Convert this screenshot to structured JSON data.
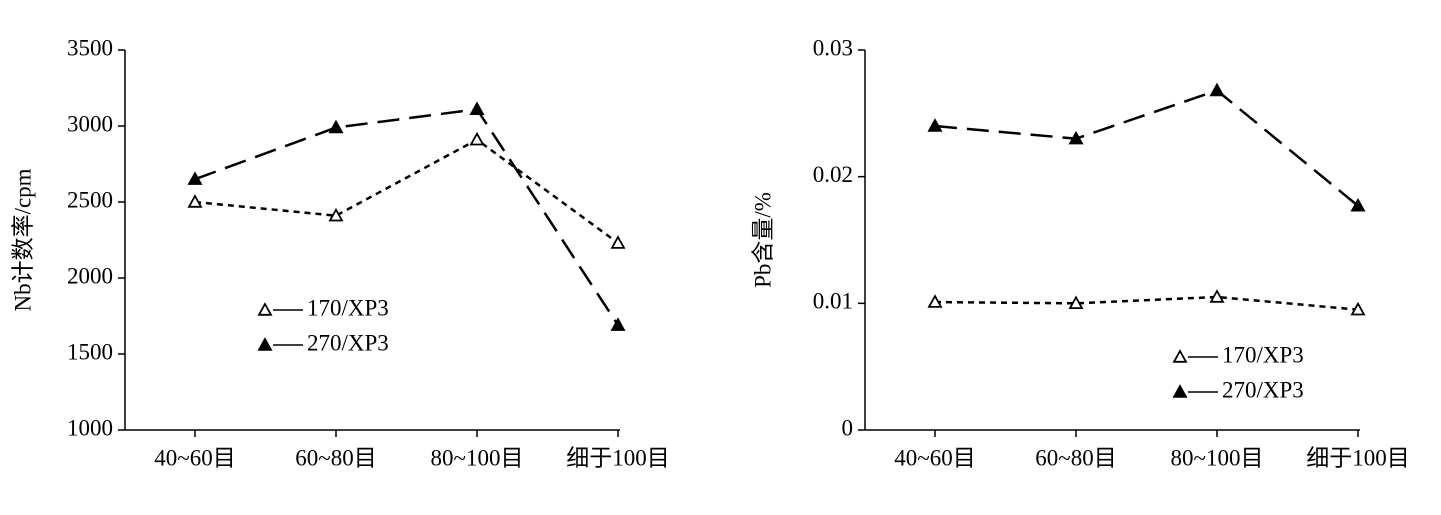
{
  "chart_data": [
    {
      "type": "line",
      "y_label": "Nb计数率/cpm",
      "categories": [
        "40~60目",
        "60~80目",
        "80~100目",
        "细于100目"
      ],
      "series": [
        {
          "name": "170/XP3",
          "color": "#000000",
          "marker": "open-triangle",
          "line_style": "short-dash",
          "values": [
            2500,
            2410,
            2910,
            2230
          ]
        },
        {
          "name": "270/XP3",
          "color": "#000000",
          "marker": "filled-triangle",
          "line_style": "long-dash",
          "values": [
            2650,
            2990,
            3110,
            1690
          ]
        }
      ],
      "ylim": [
        1000,
        3500
      ],
      "yticks": [
        1000,
        1500,
        2000,
        2500,
        3000,
        3500
      ],
      "legend": "center-left"
    },
    {
      "type": "line",
      "y_label": "Pb含量/%",
      "categories": [
        "40~60目",
        "60~80目",
        "80~100目",
        "细于100目"
      ],
      "series": [
        {
          "name": "170/XP3",
          "color": "#000000",
          "marker": "open-triangle",
          "line_style": "short-dash",
          "values": [
            0.0101,
            0.01,
            0.0105,
            0.0095
          ]
        },
        {
          "name": "270/XP3",
          "color": "#000000",
          "marker": "filled-triangle",
          "line_style": "long-dash",
          "values": [
            0.024,
            0.023,
            0.0268,
            0.0177
          ]
        }
      ],
      "ylim": [
        0,
        0.03
      ],
      "yticks": [
        0,
        0.01,
        0.02,
        0.03
      ],
      "legend": "lower-right"
    }
  ]
}
